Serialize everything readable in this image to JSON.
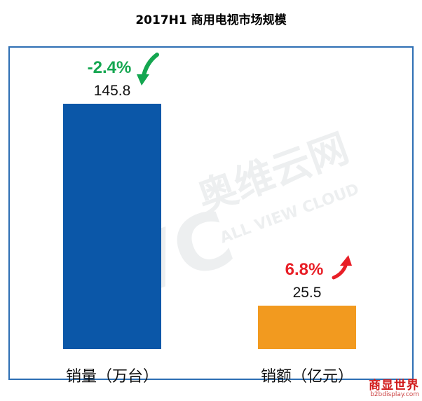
{
  "chart_data": {
    "type": "bar",
    "title": "2017H1 商用电视市场规模",
    "categories": [
      "销量（万台）",
      "销额（亿元）"
    ],
    "values": [
      145.8,
      25.5
    ],
    "value_labels": [
      "145.8",
      "25.5"
    ],
    "growth": [
      "-2.4%",
      "6.8%"
    ],
    "growth_direction": [
      "down",
      "up"
    ],
    "colors": [
      "#0b57a8",
      "#f29a1f"
    ],
    "growth_colors": [
      "#14a650",
      "#e81f27"
    ],
    "grid": false,
    "legend": "none"
  },
  "watermark": {
    "brand": "AVC",
    "cn": "奥维云网",
    "en": "ALL VIEW CLOUD"
  },
  "logo": {
    "main": "商显世界",
    "sub": "b2bdisplay.com"
  }
}
